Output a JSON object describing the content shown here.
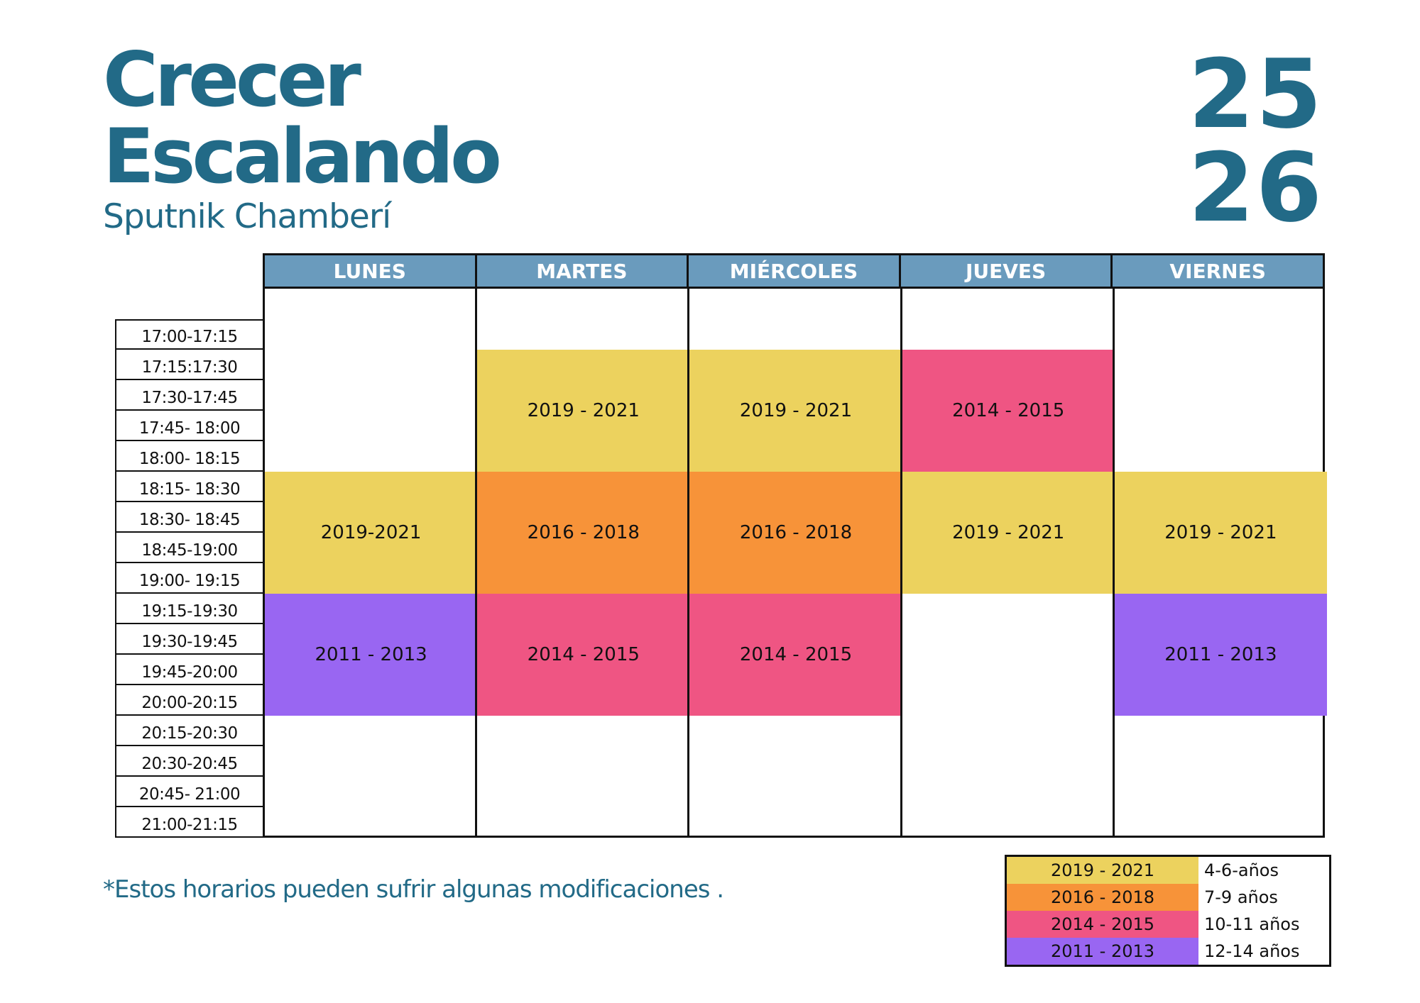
{
  "header": {
    "title_line1": "Crecer",
    "title_line2": "Escalando",
    "subtitle": "Sputnik Chamberí",
    "year_line1": "25",
    "year_line2": "26"
  },
  "colors": {
    "brand": "#226a87",
    "header_bg": "#6a9bbd",
    "yellow": "#ecd25e",
    "orange": "#f79339",
    "pink": "#ef5583",
    "purple": "#9966f2"
  },
  "days": [
    "LUNES",
    "MARTES",
    "MIÉRCOLES",
    "JUEVES",
    "VIERNES"
  ],
  "times": [
    "17:00-17:15",
    "17:15:17:30",
    "17:30-17:45",
    "17:45- 18:00",
    "18:00- 18:15",
    "18:15- 18:30",
    "18:30- 18:45",
    "18:45-19:00",
    "19:00- 19:15",
    "19:15-19:30",
    "19:30-19:45",
    "19:45-20:00",
    "20:00-20:15",
    "20:15-20:30",
    "20:30-20:45",
    "20:45- 21:00",
    "21:00-21:15"
  ],
  "classes": [
    {
      "day": 0,
      "start_slot": 5,
      "end_slot": 9,
      "label": "2019-2021",
      "color": "yellow"
    },
    {
      "day": 0,
      "start_slot": 9,
      "end_slot": 13,
      "label": "2011 - 2013",
      "color": "purple"
    },
    {
      "day": 1,
      "start_slot": 1,
      "end_slot": 5,
      "label": "2019 - 2021",
      "color": "yellow"
    },
    {
      "day": 1,
      "start_slot": 5,
      "end_slot": 9,
      "label": "2016 - 2018",
      "color": "orange"
    },
    {
      "day": 1,
      "start_slot": 9,
      "end_slot": 13,
      "label": "2014 - 2015",
      "color": "pink"
    },
    {
      "day": 2,
      "start_slot": 1,
      "end_slot": 5,
      "label": "2019 - 2021",
      "color": "yellow"
    },
    {
      "day": 2,
      "start_slot": 5,
      "end_slot": 9,
      "label": "2016 - 2018",
      "color": "orange"
    },
    {
      "day": 2,
      "start_slot": 9,
      "end_slot": 13,
      "label": "2014 - 2015",
      "color": "pink"
    },
    {
      "day": 3,
      "start_slot": 1,
      "end_slot": 5,
      "label": "2014 - 2015",
      "color": "pink"
    },
    {
      "day": 3,
      "start_slot": 5,
      "end_slot": 9,
      "label": "2019 - 2021",
      "color": "yellow"
    },
    {
      "day": 4,
      "start_slot": 5,
      "end_slot": 9,
      "label": "2019 - 2021",
      "color": "yellow"
    },
    {
      "day": 4,
      "start_slot": 9,
      "end_slot": 13,
      "label": "2011 - 2013",
      "color": "purple"
    }
  ],
  "note": "*Estos horarios pueden sufrir algunas modificaciones .",
  "legend": [
    {
      "years": "2019 - 2021",
      "ages": "4-6-años",
      "color": "yellow"
    },
    {
      "years": "2016 - 2018",
      "ages": "7-9 años",
      "color": "orange"
    },
    {
      "years": "2014 - 2015",
      "ages": "10-11 años",
      "color": "pink"
    },
    {
      "years": "2011 - 2013",
      "ages": "12-14 años",
      "color": "purple"
    }
  ]
}
